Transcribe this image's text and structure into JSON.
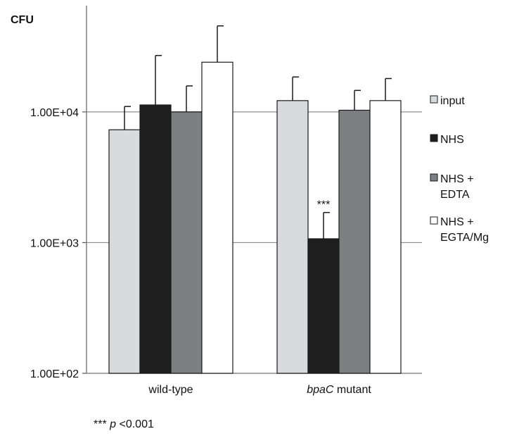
{
  "chart_data": {
    "type": "bar",
    "ylabel": "CFU",
    "y_scale": "log",
    "ylim": [
      100,
      65000
    ],
    "y_ticks": [
      {
        "value": 100,
        "label": "1.00E+02"
      },
      {
        "value": 1000,
        "label": "1.00E+03"
      },
      {
        "value": 10000,
        "label": "1.00E+04"
      }
    ],
    "grid": true,
    "legend_position": "right",
    "categories": [
      {
        "label": "wild-type",
        "label_italic_part": ""
      },
      {
        "label": " mutant",
        "label_italic_part": "bpaC"
      }
    ],
    "series": [
      {
        "name": "input",
        "color": "#d9dadc",
        "values": [
          7300,
          12200
        ],
        "errors": [
          11000,
          18500
        ]
      },
      {
        "name": "NHS",
        "color": "#1e1e1e",
        "values": [
          11300,
          1070
        ],
        "errors": [
          27000,
          1700
        ]
      },
      {
        "name": "NHS + EDTA",
        "color": "#7e7f82",
        "values": [
          10000,
          10300
        ],
        "errors": [
          15800,
          14600
        ]
      },
      {
        "name": "NHS + EGTA/Mg",
        "color": "#ffffff",
        "values": [
          24000,
          12200
        ],
        "errors": [
          45500,
          18000
        ]
      }
    ],
    "annotations": [
      {
        "text": "***",
        "category": 1,
        "series": 1
      }
    ]
  },
  "footnote": {
    "stars": "***",
    "p": "p",
    "rest": " <0.001"
  }
}
